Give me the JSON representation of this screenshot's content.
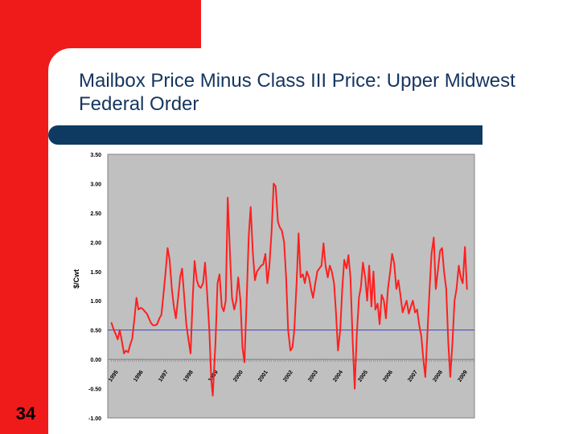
{
  "slide": {
    "title": "Mailbox Price Minus Class III Price: Upper Midwest Federal Order",
    "number": "34"
  },
  "colors": {
    "accent_red": "#ef1b1b",
    "band_navy": "#0e3a62",
    "plot_bg": "#c0c0c0",
    "series": "#ff1f1f",
    "threshold": "#3f3fbf"
  },
  "chart_data": {
    "type": "line",
    "ylabel": "$/Cwt",
    "ylim": [
      -1.0,
      3.5
    ],
    "y_ticks": [
      "3.50",
      "3.00",
      "2.50",
      "2.00",
      "1.50",
      "1.00",
      "0.50",
      "0.00",
      "-0.50",
      "-1.00"
    ],
    "x_tick_labels": [
      "1995",
      "1996",
      "1997",
      "1998",
      "1999",
      "2000",
      "2001",
      "2002",
      "2003",
      "2004",
      "2005",
      "2006",
      "2007",
      "2008",
      "2009"
    ],
    "reference_line": 0.5,
    "grid": false,
    "series": [
      {
        "points": [
          [
            1995.0,
            0.62
          ],
          [
            1995.08,
            0.52
          ],
          [
            1995.17,
            0.43
          ],
          [
            1995.25,
            0.34
          ],
          [
            1995.33,
            0.5
          ],
          [
            1995.42,
            0.3
          ],
          [
            1995.5,
            0.1
          ],
          [
            1995.58,
            0.15
          ],
          [
            1995.67,
            0.12
          ],
          [
            1995.75,
            0.25
          ],
          [
            1995.83,
            0.35
          ],
          [
            1995.92,
            0.7
          ],
          [
            1996.0,
            1.05
          ],
          [
            1996.08,
            0.85
          ],
          [
            1996.17,
            0.88
          ],
          [
            1996.25,
            0.86
          ],
          [
            1996.33,
            0.82
          ],
          [
            1996.42,
            0.78
          ],
          [
            1996.5,
            0.7
          ],
          [
            1996.58,
            0.62
          ],
          [
            1996.67,
            0.58
          ],
          [
            1996.75,
            0.58
          ],
          [
            1996.83,
            0.6
          ],
          [
            1996.92,
            0.7
          ],
          [
            1997.0,
            0.76
          ],
          [
            1997.08,
            1.1
          ],
          [
            1997.17,
            1.5
          ],
          [
            1997.25,
            1.9
          ],
          [
            1997.33,
            1.7
          ],
          [
            1997.42,
            1.2
          ],
          [
            1997.5,
            0.9
          ],
          [
            1997.58,
            0.7
          ],
          [
            1997.67,
            1.05
          ],
          [
            1997.75,
            1.4
          ],
          [
            1997.83,
            1.55
          ],
          [
            1997.92,
            1.05
          ],
          [
            1998.0,
            0.6
          ],
          [
            1998.08,
            0.35
          ],
          [
            1998.17,
            0.1
          ],
          [
            1998.25,
            1.0
          ],
          [
            1998.33,
            1.68
          ],
          [
            1998.42,
            1.35
          ],
          [
            1998.5,
            1.25
          ],
          [
            1998.58,
            1.22
          ],
          [
            1998.67,
            1.3
          ],
          [
            1998.75,
            1.65
          ],
          [
            1998.83,
            1.15
          ],
          [
            1998.92,
            0.5
          ],
          [
            1999.0,
            -0.35
          ],
          [
            1999.06,
            -0.62
          ],
          [
            1999.17,
            0.3
          ],
          [
            1999.25,
            1.3
          ],
          [
            1999.33,
            1.45
          ],
          [
            1999.42,
            0.9
          ],
          [
            1999.5,
            0.82
          ],
          [
            1999.58,
            1.0
          ],
          [
            1999.66,
            2.76
          ],
          [
            1999.75,
            1.8
          ],
          [
            1999.83,
            1.05
          ],
          [
            1999.92,
            0.85
          ],
          [
            2000.0,
            1.0
          ],
          [
            2000.08,
            1.4
          ],
          [
            2000.17,
            1.0
          ],
          [
            2000.25,
            0.2
          ],
          [
            2000.33,
            -0.05
          ],
          [
            2000.42,
            1.05
          ],
          [
            2000.5,
            2.1
          ],
          [
            2000.58,
            2.6
          ],
          [
            2000.67,
            1.8
          ],
          [
            2000.75,
            1.35
          ],
          [
            2000.83,
            1.5
          ],
          [
            2000.92,
            1.55
          ],
          [
            2001.0,
            1.6
          ],
          [
            2001.08,
            1.62
          ],
          [
            2001.17,
            1.8
          ],
          [
            2001.25,
            1.3
          ],
          [
            2001.33,
            1.6
          ],
          [
            2001.42,
            2.2
          ],
          [
            2001.5,
            3.0
          ],
          [
            2001.58,
            2.95
          ],
          [
            2001.67,
            2.35
          ],
          [
            2001.75,
            2.25
          ],
          [
            2001.83,
            2.2
          ],
          [
            2001.92,
            2.0
          ],
          [
            2002.0,
            1.4
          ],
          [
            2002.08,
            0.5
          ],
          [
            2002.17,
            0.15
          ],
          [
            2002.25,
            0.2
          ],
          [
            2002.33,
            0.5
          ],
          [
            2002.42,
            1.3
          ],
          [
            2002.5,
            2.15
          ],
          [
            2002.58,
            1.4
          ],
          [
            2002.67,
            1.45
          ],
          [
            2002.75,
            1.3
          ],
          [
            2002.83,
            1.5
          ],
          [
            2002.92,
            1.4
          ],
          [
            2003.0,
            1.2
          ],
          [
            2003.08,
            1.05
          ],
          [
            2003.17,
            1.3
          ],
          [
            2003.25,
            1.5
          ],
          [
            2003.33,
            1.55
          ],
          [
            2003.42,
            1.6
          ],
          [
            2003.5,
            1.98
          ],
          [
            2003.58,
            1.6
          ],
          [
            2003.67,
            1.4
          ],
          [
            2003.75,
            1.6
          ],
          [
            2003.83,
            1.5
          ],
          [
            2003.92,
            1.3
          ],
          [
            2004.0,
            0.8
          ],
          [
            2004.08,
            0.15
          ],
          [
            2004.17,
            0.5
          ],
          [
            2004.25,
            1.2
          ],
          [
            2004.33,
            1.7
          ],
          [
            2004.42,
            1.55
          ],
          [
            2004.5,
            1.78
          ],
          [
            2004.58,
            1.4
          ],
          [
            2004.67,
            0.3
          ],
          [
            2004.75,
            -0.5
          ],
          [
            2004.83,
            0.4
          ],
          [
            2004.92,
            1.05
          ],
          [
            2005.0,
            1.25
          ],
          [
            2005.08,
            1.65
          ],
          [
            2005.17,
            1.4
          ],
          [
            2005.25,
            1.0
          ],
          [
            2005.33,
            1.6
          ],
          [
            2005.42,
            0.9
          ],
          [
            2005.5,
            1.5
          ],
          [
            2005.58,
            0.85
          ],
          [
            2005.67,
            0.95
          ],
          [
            2005.75,
            0.6
          ],
          [
            2005.83,
            1.1
          ],
          [
            2005.92,
            1.0
          ],
          [
            2006.0,
            0.7
          ],
          [
            2006.08,
            1.2
          ],
          [
            2006.17,
            1.5
          ],
          [
            2006.25,
            1.8
          ],
          [
            2006.33,
            1.65
          ],
          [
            2006.42,
            1.2
          ],
          [
            2006.5,
            1.35
          ],
          [
            2006.58,
            1.1
          ],
          [
            2006.67,
            0.8
          ],
          [
            2006.75,
            0.9
          ],
          [
            2006.83,
            1.0
          ],
          [
            2006.92,
            0.78
          ],
          [
            2007.0,
            0.9
          ],
          [
            2007.08,
            1.0
          ],
          [
            2007.17,
            0.8
          ],
          [
            2007.25,
            0.85
          ],
          [
            2007.33,
            0.6
          ],
          [
            2007.42,
            0.4
          ],
          [
            2007.5,
            0.0
          ],
          [
            2007.58,
            -0.3
          ],
          [
            2007.67,
            0.5
          ],
          [
            2007.75,
            1.2
          ],
          [
            2007.83,
            1.8
          ],
          [
            2007.92,
            2.08
          ],
          [
            2008.0,
            1.2
          ],
          [
            2008.08,
            1.5
          ],
          [
            2008.17,
            1.85
          ],
          [
            2008.25,
            1.9
          ],
          [
            2008.33,
            1.5
          ],
          [
            2008.42,
            1.2
          ],
          [
            2008.5,
            0.3
          ],
          [
            2008.58,
            -0.3
          ],
          [
            2008.67,
            0.3
          ],
          [
            2008.75,
            1.0
          ],
          [
            2008.83,
            1.2
          ],
          [
            2008.92,
            1.6
          ],
          [
            2009.0,
            1.4
          ],
          [
            2009.08,
            1.3
          ],
          [
            2009.17,
            1.92
          ],
          [
            2009.25,
            1.2
          ]
        ]
      }
    ]
  }
}
